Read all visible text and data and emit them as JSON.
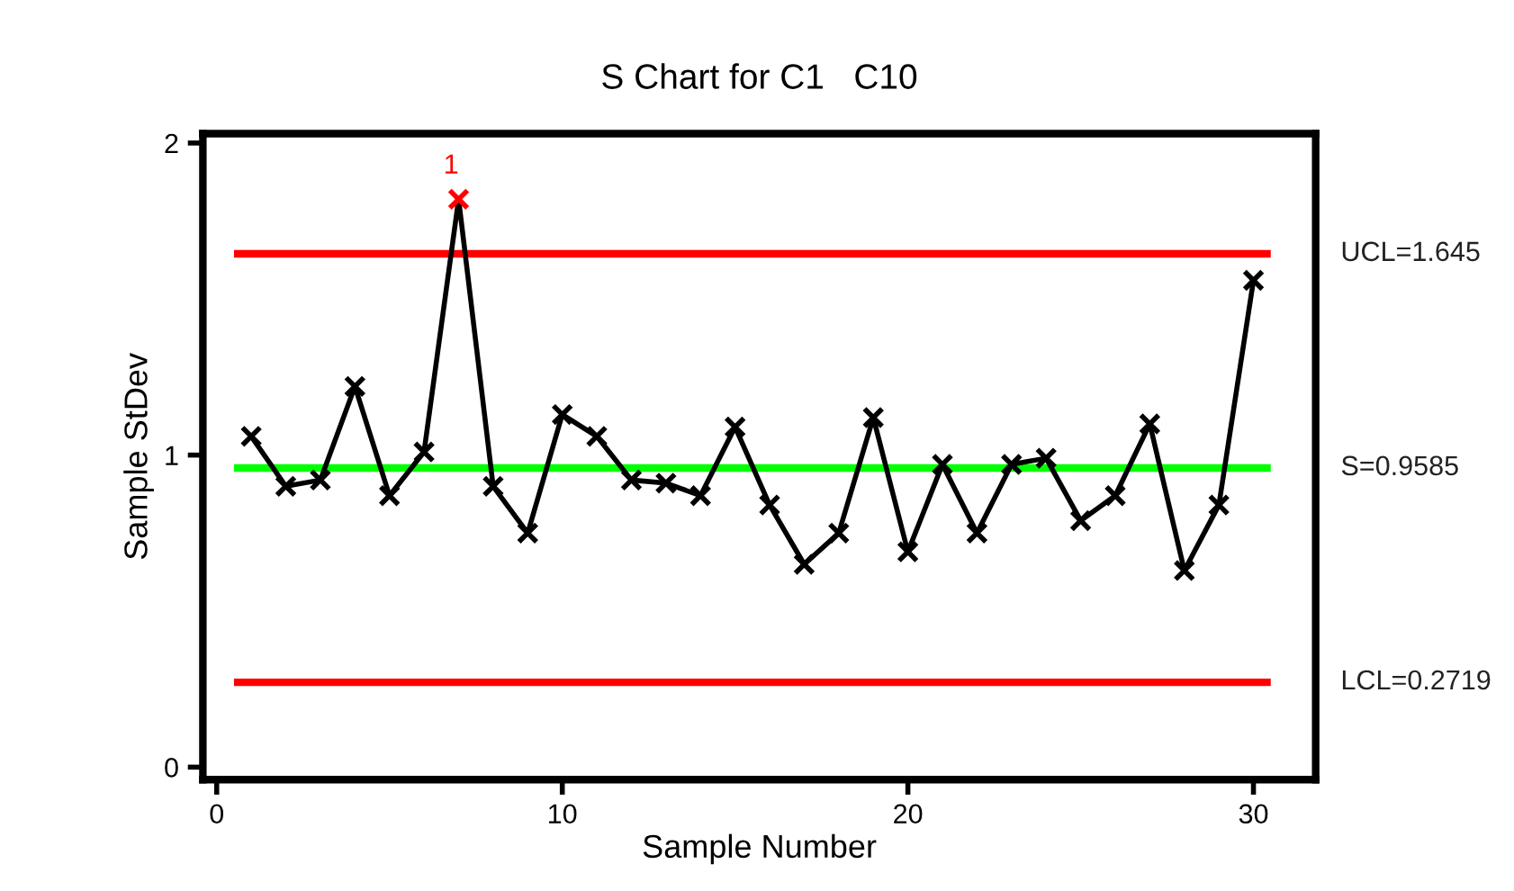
{
  "chart_data": {
    "type": "line",
    "title": "S Chart for C1   C10",
    "xlabel": "Sample Number",
    "ylabel": "Sample StDev",
    "x": [
      1,
      2,
      3,
      4,
      5,
      6,
      7,
      8,
      9,
      10,
      11,
      12,
      13,
      14,
      15,
      16,
      17,
      18,
      19,
      20,
      21,
      22,
      23,
      24,
      25,
      26,
      27,
      28,
      29,
      30
    ],
    "series": [
      {
        "color": "#000000",
        "values": [
          1.06,
          0.9,
          0.92,
          1.22,
          0.87,
          1.01,
          1.82,
          0.9,
          0.75,
          1.13,
          1.06,
          0.92,
          0.91,
          0.87,
          1.09,
          0.84,
          0.65,
          0.75,
          1.12,
          0.69,
          0.97,
          0.75,
          0.97,
          0.99,
          0.79,
          0.87,
          1.1,
          0.63,
          0.84,
          1.56
        ],
        "colors": [
          "#000000",
          "#000000",
          "#000000",
          "#000000",
          "#000000",
          "#000000",
          "#ff0000",
          "#000000",
          "#000000",
          "#000000",
          "#000000",
          "#000000",
          "#000000",
          "#000000",
          "#000000",
          "#000000",
          "#000000",
          "#000000",
          "#000000",
          "#000000",
          "#000000",
          "#000000",
          "#000000",
          "#000000",
          "#000000",
          "#000000",
          "#000000",
          "#000000",
          "#000000",
          "#000000"
        ]
      }
    ],
    "xlim": [
      -0.4,
      31.8
    ],
    "ylim": [
      -0.04,
      2.03
    ],
    "xticks": [
      0,
      10,
      20,
      30
    ],
    "yticks": [
      0,
      1,
      2
    ],
    "ref_lines": [
      {
        "axis": "y",
        "value": 1.645,
        "label": "UCL=1.645",
        "color": "#ff0000"
      },
      {
        "axis": "y",
        "value": 0.9585,
        "label": "S=0.9585",
        "color": "#00ff00"
      },
      {
        "axis": "y",
        "value": 0.2719,
        "label": "LCL=0.2719",
        "color": "#ff0000"
      }
    ],
    "annotations": [
      {
        "text": "1",
        "x": 7,
        "y": 1.82
      }
    ],
    "marker": "cross",
    "line_style": "solid",
    "grid": false,
    "legend": false
  }
}
